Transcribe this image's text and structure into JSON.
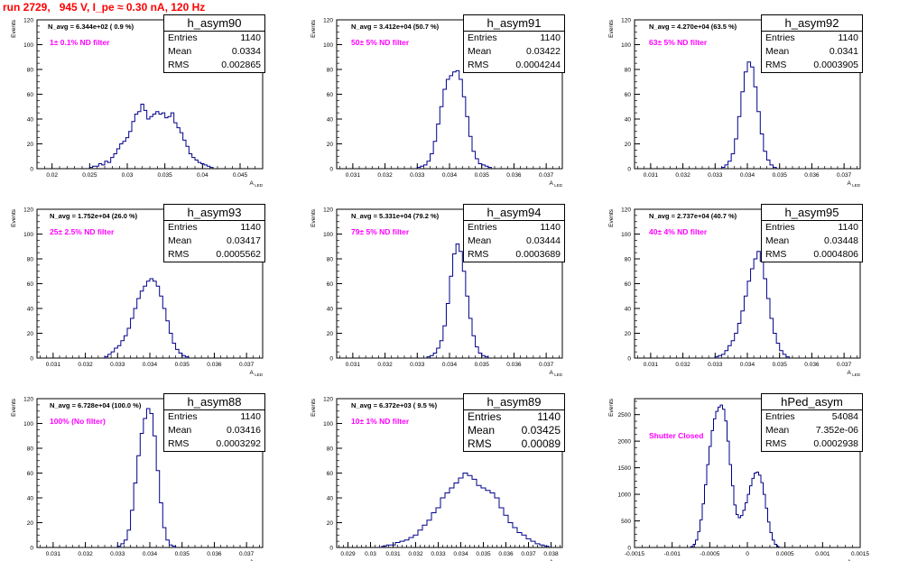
{
  "page": {
    "title": "run 2729,   945 V, I_pe ≈ 0.30 nA, 120 Hz"
  },
  "colors": {
    "title": "#ff0000",
    "histogram": "#00008b",
    "annotation": "#ff00ff",
    "axis": "#000000"
  },
  "chart_data": [
    {
      "type": "histogram",
      "name": "h_asym90",
      "ylabel": "Events",
      "xlabel": "A_LED",
      "xlim": [
        0.018,
        0.048
      ],
      "ylim": [
        0,
        120
      ],
      "yticks": [
        0,
        20,
        40,
        60,
        80,
        100,
        120
      ],
      "xticks": [
        0.02,
        0.025,
        0.03,
        0.035,
        0.04,
        0.045
      ],
      "xticklabels": [
        "0.02",
        "0.025",
        "0.03",
        "0.035",
        "0.04",
        "0.045"
      ],
      "header": "N_avg = 6.344e+02 ( 0.9 %)",
      "annotation": "1± 0.1% ND filter",
      "stats": {
        "entries": "1140",
        "mean": "0.0334",
        "rms": "0.002865"
      },
      "bins": {
        "start": 0.025,
        "width": 0.0004,
        "counts": [
          1,
          2,
          2,
          4,
          3,
          6,
          5,
          9,
          12,
          16,
          20,
          22,
          25,
          30,
          38,
          44,
          46,
          52,
          47,
          40,
          42,
          44,
          46,
          44,
          45,
          41,
          42,
          45,
          37,
          33,
          29,
          23,
          18,
          12,
          9,
          7,
          5,
          4,
          3,
          2,
          1
        ]
      }
    },
    {
      "type": "histogram",
      "name": "h_asym91",
      "ylabel": "Events",
      "xlabel": "A_LED",
      "xlim": [
        0.0305,
        0.0375
      ],
      "ylim": [
        0,
        120
      ],
      "yticks": [
        0,
        20,
        40,
        60,
        80,
        100,
        120
      ],
      "xticks": [
        0.031,
        0.032,
        0.033,
        0.034,
        0.035,
        0.036,
        0.037
      ],
      "xticklabels": [
        "0.031",
        "0.032",
        "0.033",
        "0.034",
        "0.035",
        "0.036",
        "0.037"
      ],
      "header": "N_avg = 3.412e+04 (50.7 %)",
      "annotation": "50± 5% ND filter",
      "stats": {
        "entries": "1140",
        "mean": "0.03422",
        "rms": "0.0004244"
      },
      "bins": {
        "start": 0.033,
        "width": 0.0001,
        "counts": [
          1,
          2,
          3,
          6,
          12,
          22,
          36,
          50,
          64,
          72,
          75,
          78,
          79,
          72,
          58,
          42,
          26,
          14,
          8,
          4,
          3,
          2,
          1
        ]
      }
    },
    {
      "type": "histogram",
      "name": "h_asym92",
      "ylabel": "Events",
      "xlabel": "A_LED",
      "xlim": [
        0.0305,
        0.0375
      ],
      "ylim": [
        0,
        120
      ],
      "yticks": [
        0,
        20,
        40,
        60,
        80,
        100,
        120
      ],
      "xticks": [
        0.031,
        0.032,
        0.033,
        0.034,
        0.035,
        0.036,
        0.037
      ],
      "xticklabels": [
        "0.031",
        "0.032",
        "0.033",
        "0.034",
        "0.035",
        "0.036",
        "0.037"
      ],
      "header": "N_avg = 4.270e+04 (63.5 %)",
      "annotation": "63± 5% ND filter",
      "stats": {
        "entries": "1140",
        "mean": "0.0341",
        "rms": "0.0003905"
      },
      "bins": {
        "start": 0.0332,
        "width": 0.0001,
        "counts": [
          1,
          3,
          6,
          12,
          24,
          42,
          62,
          78,
          86,
          82,
          66,
          46,
          28,
          14,
          7,
          3,
          1
        ]
      }
    },
    {
      "type": "histogram",
      "name": "h_asym93",
      "ylabel": "Events",
      "xlabel": "A_LED",
      "xlim": [
        0.0305,
        0.0375
      ],
      "ylim": [
        0,
        120
      ],
      "yticks": [
        0,
        20,
        40,
        60,
        80,
        100,
        120
      ],
      "xticks": [
        0.031,
        0.032,
        0.033,
        0.034,
        0.035,
        0.036,
        0.037
      ],
      "xticklabels": [
        "0.031",
        "0.032",
        "0.033",
        "0.034",
        "0.035",
        "0.036",
        "0.037"
      ],
      "header": "N_avg = 1.752e+04 (26.0 %)",
      "annotation": "25± 2.5% ND filter",
      "stats": {
        "entries": "1140",
        "mean": "0.03417",
        "rms": "0.0005562"
      },
      "bins": {
        "start": 0.0326,
        "width": 0.0001,
        "counts": [
          1,
          3,
          5,
          8,
          10,
          14,
          18,
          24,
          32,
          40,
          48,
          54,
          58,
          62,
          64,
          62,
          58,
          50,
          40,
          30,
          20,
          12,
          7,
          4,
          2,
          1
        ]
      }
    },
    {
      "type": "histogram",
      "name": "h_asym94",
      "ylabel": "Events",
      "xlabel": "A_LED",
      "xlim": [
        0.0305,
        0.0375
      ],
      "ylim": [
        0,
        120
      ],
      "yticks": [
        0,
        20,
        40,
        60,
        80,
        100,
        120
      ],
      "xticks": [
        0.031,
        0.032,
        0.033,
        0.034,
        0.035,
        0.036,
        0.037
      ],
      "xticklabels": [
        "0.031",
        "0.032",
        "0.033",
        "0.034",
        "0.035",
        "0.036",
        "0.037"
      ],
      "header": "N_avg = 5.331e+04 (79.2 %)",
      "annotation": "79± 5% ND filter",
      "stats": {
        "entries": "1140",
        "mean": "0.03444",
        "rms": "0.0003689"
      },
      "bins": {
        "start": 0.0333,
        "width": 0.0001,
        "counts": [
          1,
          2,
          4,
          8,
          14,
          26,
          44,
          66,
          84,
          92,
          86,
          70,
          50,
          32,
          18,
          9,
          4,
          2,
          1
        ]
      }
    },
    {
      "type": "histogram",
      "name": "h_asym95",
      "ylabel": "Events",
      "xlabel": "A_LED",
      "xlim": [
        0.0305,
        0.0375
      ],
      "ylim": [
        0,
        120
      ],
      "yticks": [
        0,
        20,
        40,
        60,
        80,
        100,
        120
      ],
      "xticks": [
        0.031,
        0.032,
        0.033,
        0.034,
        0.035,
        0.036,
        0.037
      ],
      "xticklabels": [
        "0.031",
        "0.032",
        "0.033",
        "0.034",
        "0.035",
        "0.036",
        "0.037"
      ],
      "header": "N_avg = 2.737e+04 (40.7 %)",
      "annotation": "40± 4% ND filter",
      "stats": {
        "entries": "1140",
        "mean": "0.03448",
        "rms": "0.0004806"
      },
      "bins": {
        "start": 0.033,
        "width": 0.0001,
        "counts": [
          1,
          2,
          3,
          6,
          10,
          14,
          20,
          28,
          38,
          50,
          62,
          72,
          80,
          86,
          78,
          64,
          48,
          32,
          20,
          12,
          6,
          3,
          1
        ]
      }
    },
    {
      "type": "histogram",
      "name": "h_asym88",
      "ylabel": "Events",
      "xlabel": "A_LED",
      "xlim": [
        0.0305,
        0.0375
      ],
      "ylim": [
        0,
        120
      ],
      "yticks": [
        0,
        20,
        40,
        60,
        80,
        100,
        120
      ],
      "xticks": [
        0.031,
        0.032,
        0.033,
        0.034,
        0.035,
        0.036,
        0.037
      ],
      "xticklabels": [
        "0.031",
        "0.032",
        "0.033",
        "0.034",
        "0.035",
        "0.036",
        "0.037"
      ],
      "header": "N_avg = 6.728e+04 (100.0 %)",
      "annotation": "100% (No filter)",
      "stats": {
        "entries": "1140",
        "mean": "0.03416",
        "rms": "0.0003292"
      },
      "bigstats": false,
      "bins": {
        "start": 0.033,
        "width": 0.0001,
        "counts": [
          1,
          3,
          6,
          14,
          30,
          52,
          74,
          92,
          104,
          112,
          108,
          90,
          62,
          36,
          16,
          6,
          2,
          1
        ]
      }
    },
    {
      "type": "histogram",
      "name": "h_asym89",
      "ylabel": "Events",
      "xlabel": "A_LED",
      "xlim": [
        0.0285,
        0.0385
      ],
      "ylim": [
        0,
        120
      ],
      "yticks": [
        0,
        20,
        40,
        60,
        80,
        100,
        120
      ],
      "xticks": [
        0.029,
        0.03,
        0.031,
        0.032,
        0.033,
        0.034,
        0.035,
        0.036,
        0.037,
        0.038
      ],
      "xticklabels": [
        "0.029",
        "0.03",
        "0.031",
        "0.032",
        "0.033",
        "0.034",
        "0.035",
        "0.036",
        "0.037",
        "0.038"
      ],
      "header": "N_avg = 6.372e+03 ( 9.5 %)",
      "annotation": "10± 1% ND filter",
      "stats": {
        "entries": "1140",
        "mean": "0.03425",
        "rms": "0.00089"
      },
      "bigstats": true,
      "bins": {
        "start": 0.0305,
        "width": 0.0002,
        "counts": [
          1,
          2,
          2,
          4,
          5,
          6,
          8,
          10,
          14,
          18,
          22,
          28,
          32,
          40,
          44,
          48,
          52,
          56,
          60,
          58,
          55,
          50,
          48,
          46,
          44,
          40,
          32,
          26,
          20,
          16,
          12,
          10,
          7,
          5,
          3,
          2,
          1
        ]
      }
    },
    {
      "type": "histogram",
      "name": "hPed_asym",
      "ylabel": "Events",
      "xlabel": "A_LED",
      "xlim": [
        -0.0015,
        0.0015
      ],
      "ylim": [
        0,
        2800
      ],
      "yticks": [
        0,
        500,
        1000,
        1500,
        2000,
        2500
      ],
      "xticks": [
        -0.0015,
        -0.001,
        -0.0005,
        0,
        0.0005,
        0.001,
        0.0015
      ],
      "xticklabels": [
        "-0.0015",
        "-0.001",
        "-0.0005",
        "0",
        "0.0005",
        "0.001",
        "0.0015"
      ],
      "header": "",
      "annotation": "Shutter Closed",
      "stats": {
        "entries": "54084",
        "mean": "7.352e-06",
        "rms": "0.0002938"
      },
      "bins": {
        "start": -0.00075,
        "width": 3e-05,
        "counts": [
          20,
          60,
          140,
          300,
          520,
          820,
          1180,
          1560,
          1900,
          2200,
          2420,
          2560,
          2640,
          2680,
          2600,
          2380,
          2000,
          1560,
          1160,
          800,
          620,
          560,
          600,
          700,
          840,
          1000,
          1160,
          1300,
          1400,
          1420,
          1360,
          1220,
          1000,
          740,
          480,
          280,
          140,
          60,
          20
        ]
      }
    }
  ],
  "stat_labels": {
    "entries": "Entries",
    "mean": "Mean",
    "rms": "RMS"
  }
}
